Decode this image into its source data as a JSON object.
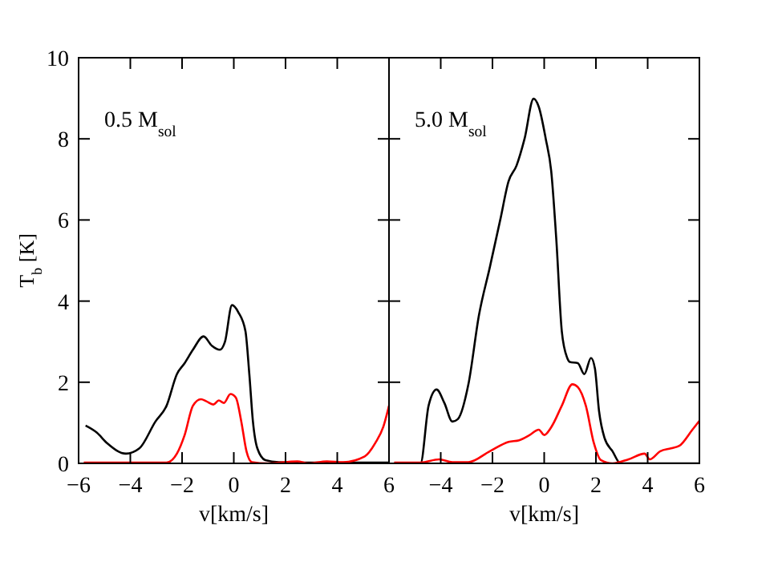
{
  "chart_data": [
    {
      "type": "line",
      "xlabel": "v[km/s]",
      "ylabel": "T$_{b}$ [K]",
      "annotations": [
        "0.5 M$_{sol}$"
      ],
      "xlim": [
        -6,
        6
      ],
      "xticks": [
        -6,
        -4,
        -2,
        0,
        2,
        4,
        6
      ],
      "ylim": [
        0,
        10
      ],
      "yticks": [
        0,
        2,
        4,
        6,
        8,
        10
      ],
      "series": [
        {
          "color": "#000000",
          "x": [
            -5.73,
            -5.3,
            -4.9,
            -4.17,
            -3.65,
            -3.03,
            -2.6,
            -2.2,
            -1.9,
            -1.58,
            -1.17,
            -0.85,
            -0.54,
            -0.34,
            -0.07,
            0.18,
            0.45,
            0.6,
            0.74,
            0.91,
            1.22,
            1.74,
            3,
            4.5,
            6
          ],
          "values": [
            0.93,
            0.76,
            0.5,
            0.24,
            0.37,
            1.03,
            1.42,
            2.2,
            2.47,
            2.8,
            3.13,
            2.9,
            2.8,
            3.0,
            3.9,
            3.72,
            3.26,
            2.2,
            1.03,
            0.37,
            0.08,
            0.03,
            0.02,
            0.02,
            0.02
          ]
        },
        {
          "color": "#ff0000",
          "x": [
            -5.8,
            -4,
            -2.6,
            -2.2,
            -1.9,
            -1.58,
            -1.27,
            -1.06,
            -0.79,
            -0.58,
            -0.38,
            -0.13,
            0.08,
            0.29,
            0.49,
            0.7,
            1.3,
            2.46,
            2.88,
            3.6,
            4.23,
            5.06,
            5.47,
            5.78,
            6
          ],
          "values": [
            0.02,
            0.02,
            0.02,
            0.24,
            0.7,
            1.42,
            1.58,
            1.53,
            1.45,
            1.55,
            1.49,
            1.71,
            1.62,
            1.03,
            0.3,
            0.03,
            0,
            0.05,
            0,
            0.05,
            0.03,
            0.17,
            0.5,
            0.9,
            1.42
          ]
        }
      ]
    },
    {
      "type": "line",
      "xlabel": "v[km/s]",
      "annotations": [
        "5.0 M$_{sol}$"
      ],
      "xlim": [
        -6,
        6
      ],
      "xticks": [
        {
          "value": -6,
          "label": null
        },
        -4,
        -2,
        0,
        2,
        4,
        6
      ],
      "ylim": [
        0,
        10
      ],
      "yticks": [
        0,
        2,
        4,
        6,
        8,
        10
      ],
      "tick_labels": "x",
      "series": [
        {
          "color": "#000000",
          "x": [
            -5.8,
            -4.78,
            -4.47,
            -4.16,
            -3.86,
            -3.55,
            -3.34,
            -2.93,
            -2.52,
            -2.1,
            -1.69,
            -1.38,
            -1.07,
            -0.76,
            -0.41,
            -0.21,
            0.06,
            0.27,
            0.47,
            0.68,
            0.89,
            0.99,
            1.3,
            1.55,
            1.81,
            1.96,
            2.12,
            2.33,
            2.64,
            2.95,
            4.5,
            6
          ],
          "values": [
            0,
            0,
            1.42,
            1.82,
            1.49,
            1.03,
            1.09,
            1.95,
            3.66,
            4.84,
            6.03,
            6.95,
            7.34,
            8.0,
            8.99,
            8.79,
            8.0,
            7.21,
            5.5,
            3.26,
            2.6,
            2.5,
            2.47,
            2.2,
            2.6,
            2.34,
            1.29,
            0.63,
            0.3,
            0,
            0,
            0
          ]
        },
        {
          "color": "#ff0000",
          "x": [
            -5.8,
            -4.78,
            -4.06,
            -3.55,
            -2.93,
            -2.1,
            -1.38,
            -0.97,
            -0.56,
            -0.21,
            0,
            0.27,
            0.68,
            1.09,
            1.3,
            1.61,
            1.92,
            2.19,
            2.64,
            3.26,
            3.88,
            4.08,
            4.49,
            4.9,
            5.22,
            5.73,
            6
          ],
          "values": [
            0.02,
            0.02,
            0.1,
            0.03,
            0.03,
            0.3,
            0.53,
            0.57,
            0.7,
            0.83,
            0.7,
            0.89,
            1.42,
            1.95,
            1.88,
            1.42,
            0.5,
            0.08,
            0,
            0.1,
            0.24,
            0.1,
            0.3,
            0.37,
            0.43,
            0.83,
            1.05
          ]
        }
      ]
    }
  ]
}
